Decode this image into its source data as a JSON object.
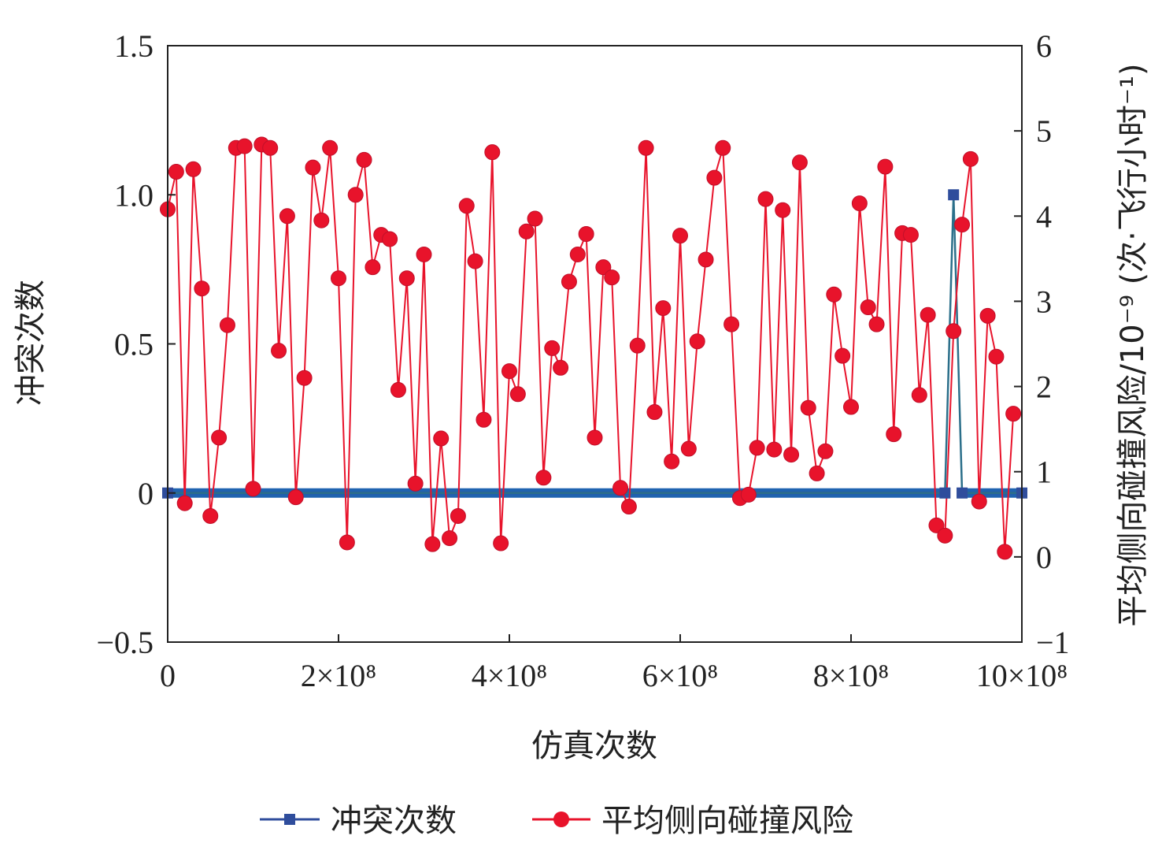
{
  "chart_data": {
    "type": "line",
    "xlabel": "仿真次数",
    "ylabel_left": "冲突次数",
    "ylabel_right": "平均侧向碰撞风险/10⁻⁹ (次·飞行小时⁻¹)",
    "xlim": [
      0,
      1000000000
    ],
    "ylim_left": [
      -0.5,
      1.5
    ],
    "ylim_right": [
      -1,
      6
    ],
    "x_ticks": [
      "0",
      "2×10⁸",
      "4×10⁸",
      "6×10⁸",
      "8×10⁸",
      "10×10⁸"
    ],
    "y_ticks_left": [
      "1.5",
      "1.0",
      "0.5",
      "0",
      "−0.5"
    ],
    "y_ticks_right": [
      "6",
      "5",
      "4",
      "3",
      "2",
      "1",
      "0",
      "−1"
    ],
    "legend_position": "bottom",
    "colors": {
      "conflicts": "#2f4d9c",
      "risk": "#e8132b",
      "risk_line": "#e8132b",
      "baseline": "#1f63b0"
    },
    "series": [
      {
        "name": "冲突次数",
        "axis": "left",
        "marker": "square",
        "x": [
          0,
          910000000,
          920000000,
          930000000,
          1000000000
        ],
        "values": [
          0,
          0,
          1,
          0,
          0
        ]
      },
      {
        "name": "平均侧向碰撞风险",
        "axis": "right",
        "marker": "circle",
        "x": [
          0,
          10000000,
          20000000,
          30000000,
          40000000,
          50000000,
          60000000,
          70000000,
          80000000,
          90000000,
          100000000,
          110000000,
          120000000,
          130000000,
          140000000,
          150000000,
          160000000,
          170000000,
          180000000,
          190000000,
          200000000,
          210000000,
          220000000,
          230000000,
          240000000,
          250000000,
          260000000,
          270000000,
          280000000,
          290000000,
          300000000,
          310000000,
          320000000,
          330000000,
          340000000,
          350000000,
          360000000,
          370000000,
          380000000,
          390000000,
          400000000,
          410000000,
          420000000,
          430000000,
          440000000,
          450000000,
          460000000,
          470000000,
          480000000,
          490000000,
          500000000,
          510000000,
          520000000,
          530000000,
          540000000,
          550000000,
          560000000,
          570000000,
          580000000,
          590000000,
          600000000,
          610000000,
          620000000,
          630000000,
          640000000,
          650000000,
          660000000,
          670000000,
          680000000,
          690000000,
          700000000,
          710000000,
          720000000,
          730000000,
          740000000,
          750000000,
          760000000,
          770000000,
          780000000,
          790000000,
          800000000,
          810000000,
          820000000,
          830000000,
          840000000,
          850000000,
          860000000,
          870000000,
          880000000,
          890000000,
          900000000,
          910000000,
          920000000,
          930000000,
          940000000,
          950000000,
          960000000,
          970000000,
          980000000,
          990000000
        ],
        "values": [
          4.08,
          4.52,
          0.63,
          4.55,
          3.15,
          0.48,
          1.4,
          2.72,
          4.8,
          4.82,
          0.8,
          4.84,
          4.8,
          2.42,
          4.0,
          0.7,
          2.1,
          4.57,
          3.95,
          4.8,
          3.27,
          0.17,
          4.25,
          4.66,
          3.4,
          3.78,
          3.73,
          1.96,
          3.27,
          0.86,
          3.55,
          0.15,
          1.39,
          0.22,
          0.48,
          4.12,
          3.47,
          1.61,
          4.75,
          0.16,
          2.18,
          1.91,
          3.82,
          3.97,
          0.93,
          2.45,
          2.22,
          3.23,
          3.55,
          3.79,
          1.4,
          3.4,
          3.28,
          0.81,
          0.59,
          2.48,
          4.8,
          1.7,
          2.92,
          1.12,
          3.77,
          1.27,
          2.53,
          3.49,
          4.45,
          4.8,
          2.73,
          0.69,
          0.73,
          1.28,
          4.2,
          1.26,
          4.07,
          1.2,
          4.63,
          1.75,
          0.98,
          1.24,
          3.08,
          2.36,
          1.76,
          4.15,
          2.93,
          2.73,
          4.58,
          1.44,
          3.8,
          3.78,
          1.9,
          2.84,
          0.37,
          0.25,
          2.65,
          3.9,
          4.67,
          0.65,
          2.83,
          2.35,
          0.06,
          1.68
        ]
      }
    ]
  }
}
